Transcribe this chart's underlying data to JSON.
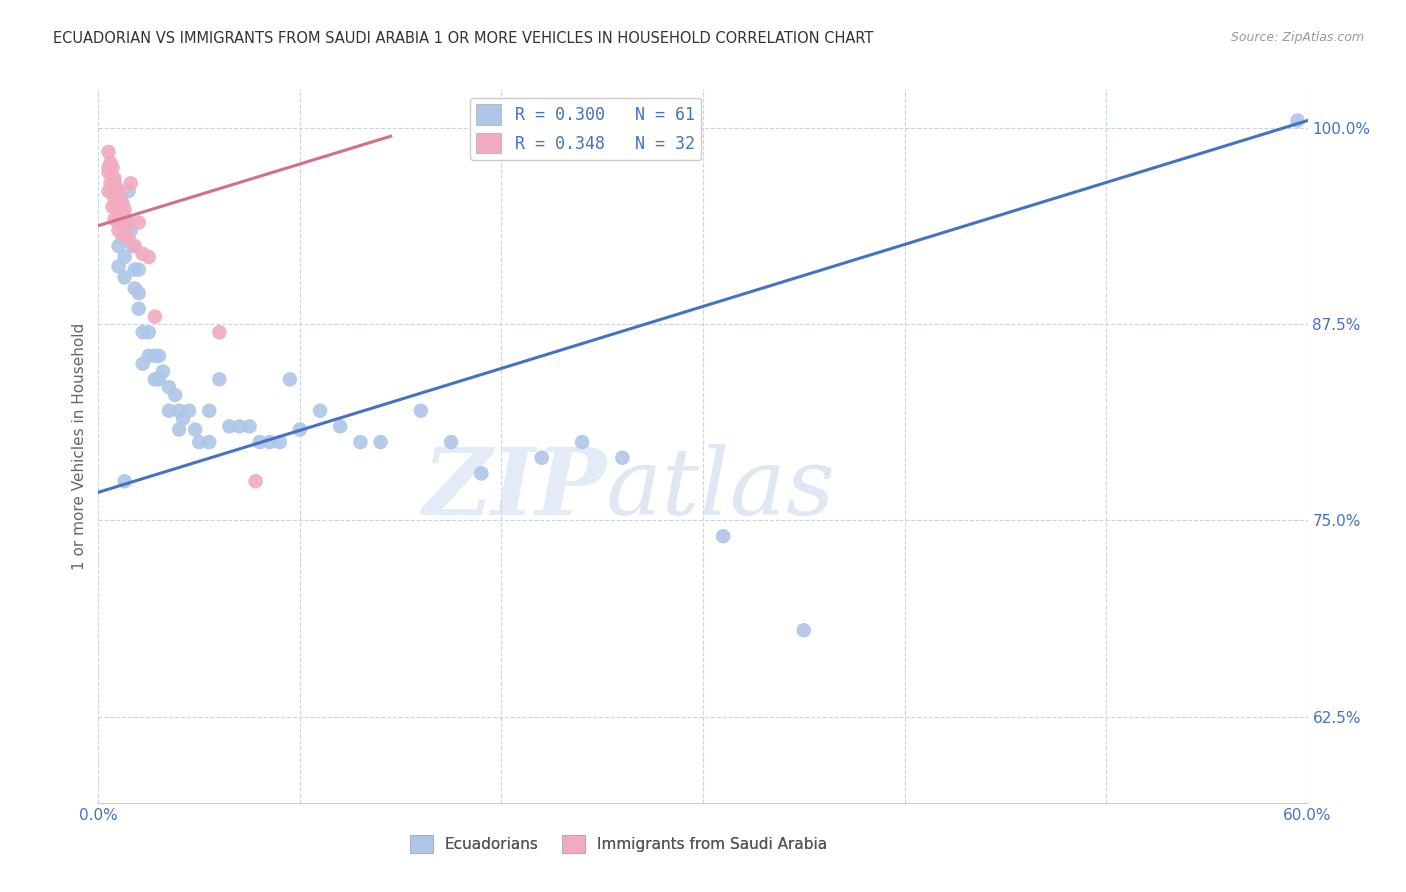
{
  "title": "ECUADORIAN VS IMMIGRANTS FROM SAUDI ARABIA 1 OR MORE VEHICLES IN HOUSEHOLD CORRELATION CHART",
  "source": "Source: ZipAtlas.com",
  "ylabel": "1 or more Vehicles in Household",
  "xlim": [
    0.0,
    0.6
  ],
  "ylim": [
    0.57,
    1.025
  ],
  "yticks": [
    0.625,
    0.75,
    0.875,
    1.0
  ],
  "yticklabels": [
    "62.5%",
    "75.0%",
    "87.5%",
    "100.0%"
  ],
  "xticks": [
    0.0,
    0.1,
    0.2,
    0.3,
    0.4,
    0.5,
    0.6
  ],
  "xticklabels": [
    "0.0%",
    "",
    "",
    "",
    "",
    "",
    "60.0%"
  ],
  "blue_R": 0.3,
  "blue_N": 61,
  "pink_R": 0.348,
  "pink_N": 32,
  "blue_color": "#aec6e8",
  "pink_color": "#f2aabe",
  "blue_line_color": "#4472c4",
  "pink_line_color": "#d46e8a",
  "legend_R_color": "#4472c4",
  "watermark_zip": "ZIP",
  "watermark_atlas": "atlas",
  "blue_line_x0": 0.0,
  "blue_line_y0": 0.768,
  "blue_line_x1": 0.6,
  "blue_line_y1": 1.005,
  "pink_line_x0": 0.0,
  "pink_line_x1": 0.145,
  "pink_line_y0": 0.938,
  "pink_line_y1": 0.995,
  "blue_x": [
    0.005,
    0.008,
    0.01,
    0.01,
    0.01,
    0.012,
    0.012,
    0.013,
    0.013,
    0.015,
    0.015,
    0.016,
    0.017,
    0.018,
    0.018,
    0.02,
    0.02,
    0.02,
    0.022,
    0.022,
    0.025,
    0.025,
    0.028,
    0.028,
    0.03,
    0.03,
    0.032,
    0.035,
    0.035,
    0.038,
    0.04,
    0.04,
    0.042,
    0.045,
    0.048,
    0.05,
    0.055,
    0.055,
    0.06,
    0.065,
    0.07,
    0.075,
    0.08,
    0.085,
    0.09,
    0.095,
    0.1,
    0.11,
    0.12,
    0.13,
    0.14,
    0.16,
    0.175,
    0.19,
    0.22,
    0.24,
    0.26,
    0.31,
    0.35,
    0.595,
    0.013
  ],
  "blue_y": [
    0.975,
    0.965,
    0.94,
    0.925,
    0.912,
    0.945,
    0.93,
    0.918,
    0.905,
    0.96,
    0.94,
    0.935,
    0.925,
    0.91,
    0.898,
    0.91,
    0.895,
    0.885,
    0.87,
    0.85,
    0.87,
    0.855,
    0.855,
    0.84,
    0.855,
    0.84,
    0.845,
    0.835,
    0.82,
    0.83,
    0.82,
    0.808,
    0.815,
    0.82,
    0.808,
    0.8,
    0.82,
    0.8,
    0.84,
    0.81,
    0.81,
    0.81,
    0.8,
    0.8,
    0.8,
    0.84,
    0.808,
    0.82,
    0.81,
    0.8,
    0.8,
    0.82,
    0.8,
    0.78,
    0.79,
    0.8,
    0.79,
    0.74,
    0.68,
    1.005,
    0.775
  ],
  "pink_x": [
    0.005,
    0.005,
    0.005,
    0.006,
    0.006,
    0.007,
    0.007,
    0.007,
    0.008,
    0.008,
    0.008,
    0.009,
    0.009,
    0.01,
    0.01,
    0.01,
    0.011,
    0.011,
    0.012,
    0.012,
    0.013,
    0.013,
    0.014,
    0.015,
    0.016,
    0.018,
    0.02,
    0.022,
    0.025,
    0.028,
    0.06,
    0.078
  ],
  "pink_y": [
    0.985,
    0.972,
    0.96,
    0.978,
    0.965,
    0.975,
    0.962,
    0.95,
    0.968,
    0.955,
    0.942,
    0.962,
    0.948,
    0.96,
    0.948,
    0.935,
    0.955,
    0.942,
    0.952,
    0.938,
    0.948,
    0.932,
    0.94,
    0.93,
    0.965,
    0.925,
    0.94,
    0.92,
    0.918,
    0.88,
    0.87,
    0.775
  ]
}
